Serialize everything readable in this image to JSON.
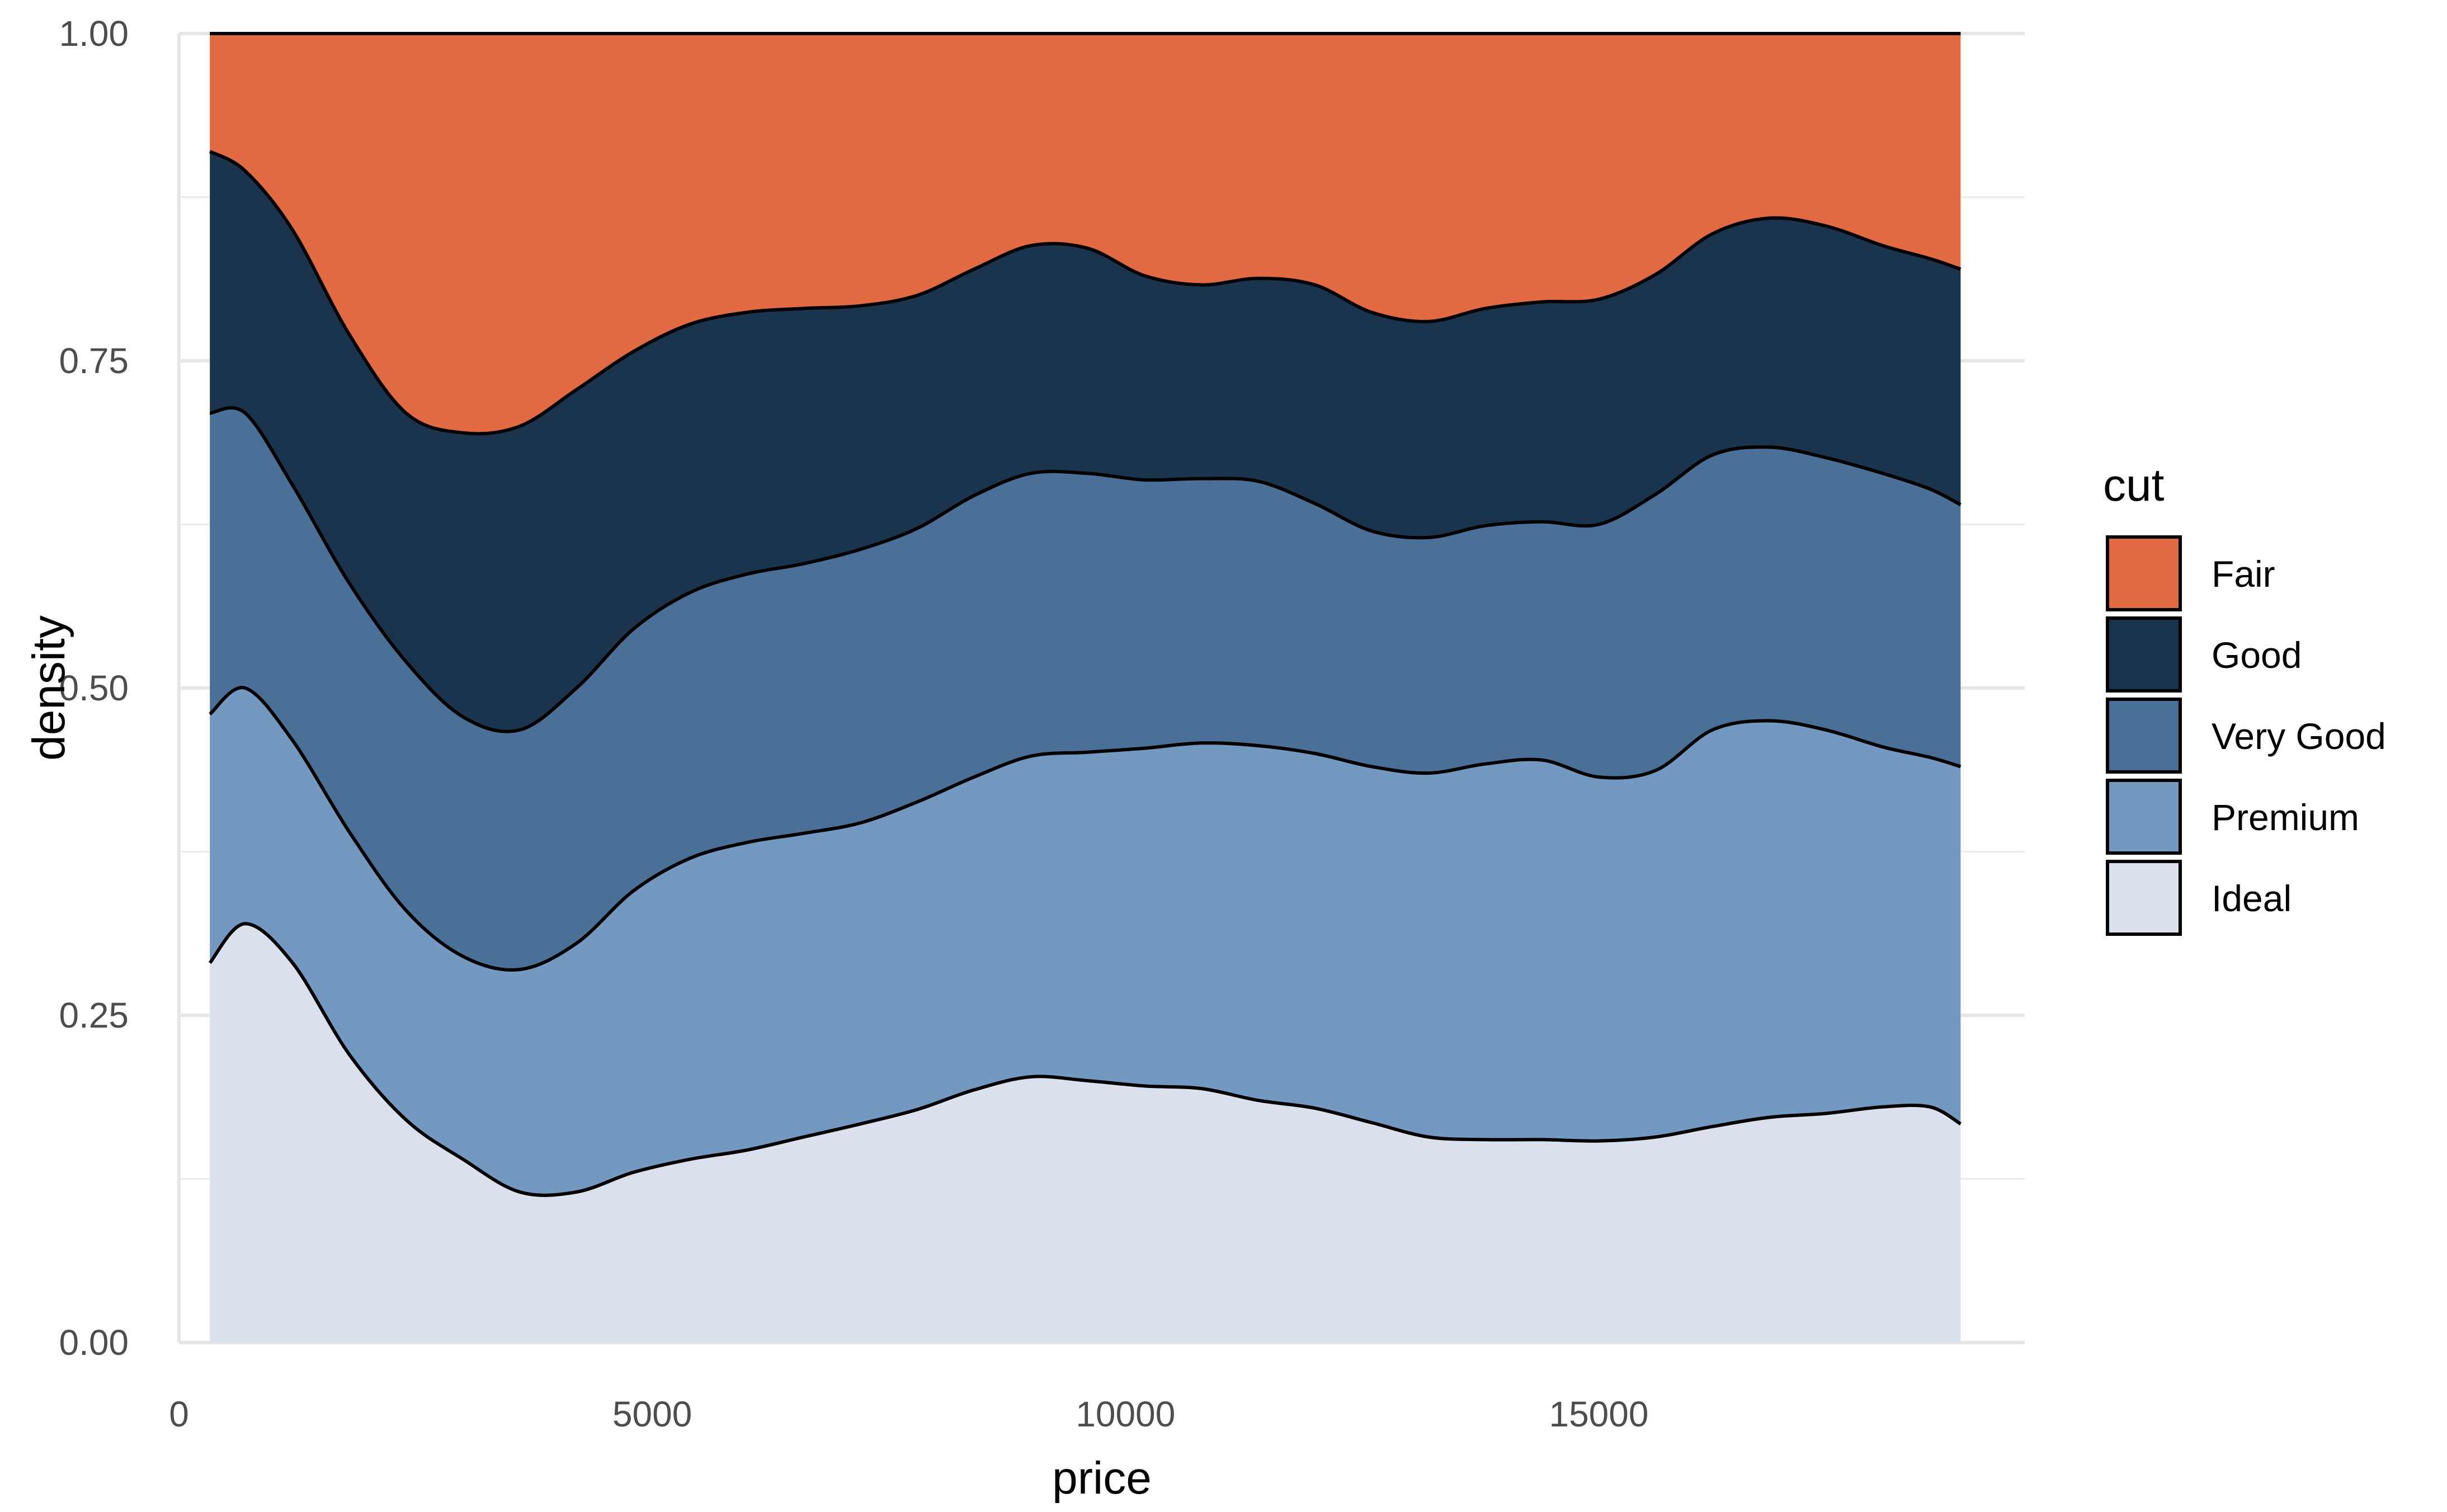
{
  "chart_data": {
    "type": "area",
    "subtype": "stacked-filled-density",
    "title": "",
    "xlabel": "price",
    "ylabel": "density",
    "xlim": [
      0,
      19500
    ],
    "ylim": [
      0,
      1
    ],
    "x_ticks": [
      0,
      5000,
      10000,
      15000
    ],
    "x_tick_labels": [
      "0",
      "5000",
      "10000",
      "15000"
    ],
    "y_ticks": [
      0,
      0.25,
      0.5,
      0.75,
      1
    ],
    "y_tick_labels": [
      "0.00",
      "0.25",
      "0.50",
      "0.75",
      "1.00"
    ],
    "grid": true,
    "legend": {
      "title": "cut",
      "position": "right",
      "entries": [
        {
          "label": "Fair",
          "color": "#E16A43"
        },
        {
          "label": "Good",
          "color": "#1B344E"
        },
        {
          "label": "Very Good",
          "color": "#4A7097"
        },
        {
          "label": "Premium",
          "color": "#7399C1"
        },
        {
          "label": "Ideal",
          "color": "#DBE1EC"
        }
      ]
    },
    "x": [
      326,
      700,
      1200,
      1800,
      2400,
      3000,
      3600,
      4200,
      4800,
      5400,
      6000,
      6600,
      7200,
      7800,
      8400,
      9000,
      9600,
      10200,
      10800,
      11400,
      12000,
      12600,
      13200,
      13800,
      14400,
      15000,
      15600,
      16200,
      16800,
      17400,
      18000,
      18500,
      18823
    ],
    "boundaries_note_order": "Ideal top, Premium top, Very Good top, Good top; Fair fills to 1.0",
    "series": [
      {
        "name": "Ideal",
        "color": "#DBE1EC",
        "upper": [
          0.29,
          0.32,
          0.29,
          0.22,
          0.17,
          0.14,
          0.115,
          0.115,
          0.13,
          0.14,
          0.147,
          0.157,
          0.167,
          0.178,
          0.193,
          0.203,
          0.2,
          0.196,
          0.194,
          0.185,
          0.179,
          0.168,
          0.157,
          0.155,
          0.155,
          0.154,
          0.157,
          0.165,
          0.172,
          0.175,
          0.18,
          0.18,
          0.167
        ]
      },
      {
        "name": "Premium",
        "color": "#7399C1",
        "upper": [
          0.48,
          0.5,
          0.46,
          0.39,
          0.33,
          0.295,
          0.285,
          0.305,
          0.345,
          0.37,
          0.382,
          0.389,
          0.397,
          0.413,
          0.432,
          0.448,
          0.451,
          0.454,
          0.458,
          0.456,
          0.45,
          0.44,
          0.435,
          0.442,
          0.445,
          0.432,
          0.437,
          0.468,
          0.475,
          0.468,
          0.455,
          0.447,
          0.44
        ]
      },
      {
        "name": "Very Good",
        "color": "#4A7097",
        "upper": [
          0.71,
          0.71,
          0.655,
          0.58,
          0.52,
          0.478,
          0.468,
          0.5,
          0.545,
          0.573,
          0.587,
          0.595,
          0.606,
          0.622,
          0.647,
          0.664,
          0.664,
          0.659,
          0.66,
          0.658,
          0.641,
          0.62,
          0.615,
          0.624,
          0.627,
          0.625,
          0.648,
          0.678,
          0.684,
          0.676,
          0.664,
          0.652,
          0.64
        ]
      },
      {
        "name": "Good",
        "color": "#1B344E",
        "upper": [
          0.91,
          0.895,
          0.85,
          0.77,
          0.71,
          0.695,
          0.7,
          0.728,
          0.757,
          0.778,
          0.787,
          0.79,
          0.792,
          0.8,
          0.82,
          0.838,
          0.836,
          0.815,
          0.808,
          0.813,
          0.808,
          0.787,
          0.78,
          0.79,
          0.795,
          0.797,
          0.816,
          0.847,
          0.859,
          0.853,
          0.838,
          0.828,
          0.82
        ]
      },
      {
        "name": "Fair",
        "color": "#E16A43",
        "upper": [
          1,
          1,
          1,
          1,
          1,
          1,
          1,
          1,
          1,
          1,
          1,
          1,
          1,
          1,
          1,
          1,
          1,
          1,
          1,
          1,
          1,
          1,
          1,
          1,
          1,
          1,
          1,
          1,
          1,
          1,
          1,
          1,
          1
        ]
      }
    ]
  }
}
